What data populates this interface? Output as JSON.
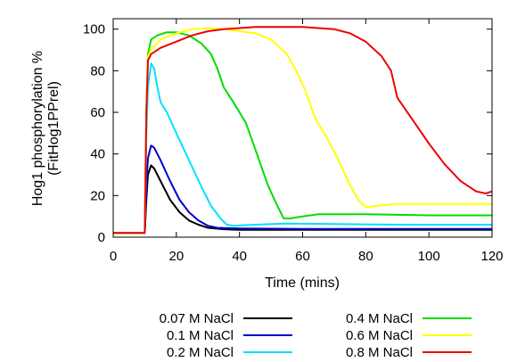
{
  "chart_data": {
    "type": "line",
    "title": "",
    "xlabel": "Time (mins)",
    "ylabel_line1": "Hog1 phosphorylation %",
    "ylabel_line2": "(FitHog1PPrel)",
    "xlim": [
      0,
      120
    ],
    "ylim": [
      0,
      105
    ],
    "xticks": [
      "0",
      "20",
      "40",
      "60",
      "80",
      "100",
      "120"
    ],
    "yticks": [
      "0",
      "20",
      "40",
      "60",
      "80",
      "100"
    ],
    "grid": false,
    "legend_position": "bottom",
    "series": [
      {
        "name": "0.07 M NaCl",
        "color": "#000000",
        "points": [
          [
            0,
            2
          ],
          [
            9.5,
            2
          ],
          [
            10,
            2
          ],
          [
            10.5,
            18
          ],
          [
            11,
            30
          ],
          [
            12,
            34.5
          ],
          [
            13,
            33
          ],
          [
            15,
            27
          ],
          [
            18,
            18
          ],
          [
            21,
            12
          ],
          [
            24,
            8
          ],
          [
            27,
            6
          ],
          [
            30,
            4.5
          ],
          [
            35,
            3.8
          ],
          [
            40,
            3.5
          ],
          [
            60,
            3.5
          ],
          [
            80,
            3.5
          ],
          [
            100,
            3.5
          ],
          [
            120,
            3.5
          ]
        ]
      },
      {
        "name": "0.1 M NaCl",
        "color": "#0000cc",
        "points": [
          [
            0,
            2
          ],
          [
            9.5,
            2
          ],
          [
            10,
            2
          ],
          [
            10.5,
            25
          ],
          [
            11,
            38
          ],
          [
            12,
            44
          ],
          [
            13,
            43
          ],
          [
            15,
            37
          ],
          [
            18,
            27
          ],
          [
            21,
            18
          ],
          [
            24,
            12
          ],
          [
            27,
            8
          ],
          [
            30,
            5.5
          ],
          [
            33,
            4.5
          ],
          [
            40,
            4.2
          ],
          [
            60,
            4
          ],
          [
            80,
            4
          ],
          [
            100,
            4
          ],
          [
            120,
            4
          ]
        ]
      },
      {
        "name": "0.2 M NaCl",
        "color": "#00e0ff",
        "points": [
          [
            0,
            2
          ],
          [
            9.5,
            2
          ],
          [
            10,
            2
          ],
          [
            10.5,
            50
          ],
          [
            11,
            72
          ],
          [
            12,
            83.5
          ],
          [
            13,
            81
          ],
          [
            14,
            72
          ],
          [
            15,
            65
          ],
          [
            17,
            60
          ],
          [
            20,
            50
          ],
          [
            24,
            37
          ],
          [
            28,
            24
          ],
          [
            31,
            15
          ],
          [
            34,
            9
          ],
          [
            36,
            6
          ],
          [
            38,
            5.5
          ],
          [
            45,
            6
          ],
          [
            55,
            6.5
          ],
          [
            70,
            6.3
          ],
          [
            90,
            6
          ],
          [
            120,
            6
          ]
        ]
      },
      {
        "name": "0.4 M NaCl",
        "color": "#00dd00",
        "points": [
          [
            0,
            2
          ],
          [
            9.5,
            2
          ],
          [
            10,
            2
          ],
          [
            10.5,
            60
          ],
          [
            11,
            88
          ],
          [
            12,
            95
          ],
          [
            14,
            97
          ],
          [
            17,
            98.5
          ],
          [
            20,
            98.5
          ],
          [
            24,
            97
          ],
          [
            28,
            93
          ],
          [
            31,
            88
          ],
          [
            33,
            81
          ],
          [
            35,
            72
          ],
          [
            38,
            65
          ],
          [
            42,
            55
          ],
          [
            46,
            38
          ],
          [
            49,
            25
          ],
          [
            52,
            15
          ],
          [
            54,
            9
          ],
          [
            56,
            9
          ],
          [
            60,
            10
          ],
          [
            65,
            11
          ],
          [
            80,
            11
          ],
          [
            100,
            10.5
          ],
          [
            120,
            10.5
          ]
        ]
      },
      {
        "name": "0.6 M NaCl",
        "color": "#ffff00",
        "points": [
          [
            0,
            2
          ],
          [
            9.5,
            2
          ],
          [
            10,
            2
          ],
          [
            10.5,
            60
          ],
          [
            11,
            87
          ],
          [
            12,
            90
          ],
          [
            15,
            95
          ],
          [
            20,
            98
          ],
          [
            25,
            100
          ],
          [
            30,
            100.5
          ],
          [
            35,
            100
          ],
          [
            40,
            99
          ],
          [
            45,
            98
          ],
          [
            50,
            95
          ],
          [
            55,
            88
          ],
          [
            58,
            80
          ],
          [
            61,
            70
          ],
          [
            64,
            57
          ],
          [
            68,
            47
          ],
          [
            72,
            35
          ],
          [
            75,
            25
          ],
          [
            78,
            17
          ],
          [
            80,
            14.5
          ],
          [
            83,
            15
          ],
          [
            90,
            16
          ],
          [
            100,
            16
          ],
          [
            120,
            16
          ]
        ]
      },
      {
        "name": "0.8 M NaCl",
        "color": "#ee0000",
        "points": [
          [
            0,
            2
          ],
          [
            9.5,
            2
          ],
          [
            10,
            2
          ],
          [
            10.5,
            60
          ],
          [
            11,
            85
          ],
          [
            12,
            88
          ],
          [
            15,
            91
          ],
          [
            20,
            94
          ],
          [
            25,
            97
          ],
          [
            30,
            99
          ],
          [
            35,
            100
          ],
          [
            40,
            100.5
          ],
          [
            45,
            101
          ],
          [
            60,
            101
          ],
          [
            70,
            100
          ],
          [
            75,
            98
          ],
          [
            80,
            94
          ],
          [
            85,
            87
          ],
          [
            88,
            80
          ],
          [
            90,
            67
          ],
          [
            95,
            56
          ],
          [
            100,
            45
          ],
          [
            105,
            35
          ],
          [
            110,
            27
          ],
          [
            115,
            22
          ],
          [
            118,
            21
          ],
          [
            120,
            22
          ]
        ]
      }
    ]
  }
}
